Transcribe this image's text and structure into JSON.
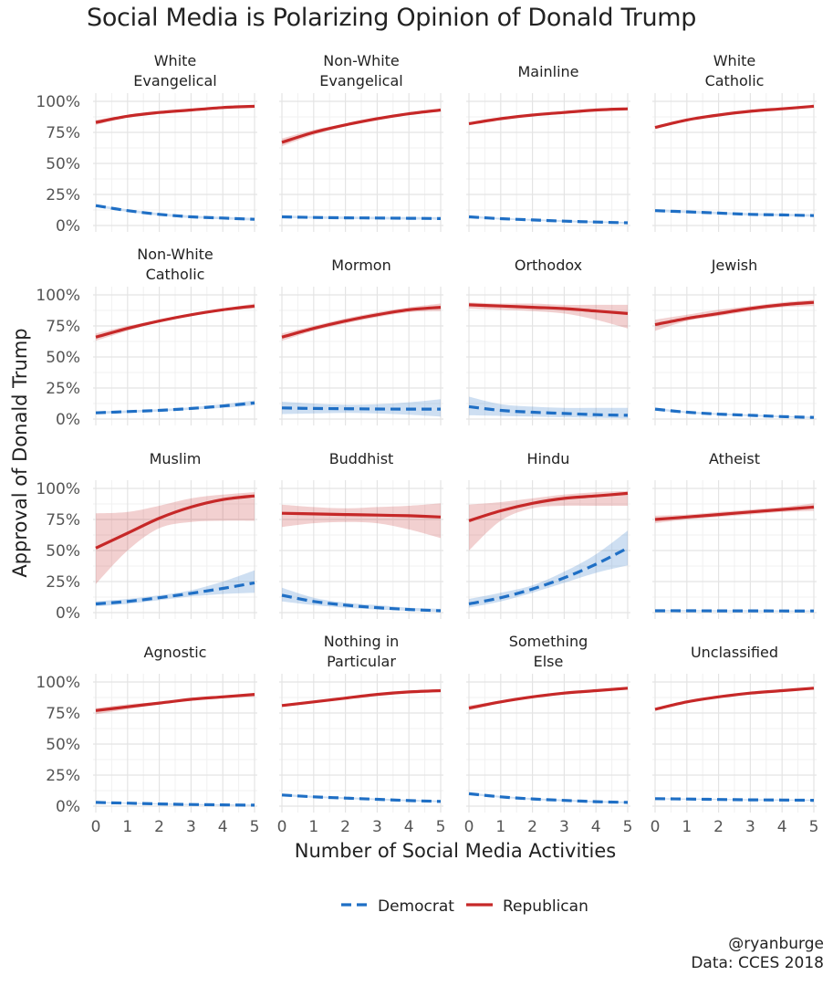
{
  "title": "Social Media is Polarizing Opinion of Donald Trump",
  "caption": {
    "handle": "@ryanburge",
    "source": "Data: CCES 2018"
  },
  "chart_data": {
    "type": "line",
    "facet_layout": "4x4",
    "xlabel": "Number of Social Media Activities",
    "ylabel": "Approval of Donald Trump",
    "x": [
      0,
      1,
      2,
      3,
      4,
      5
    ],
    "xlim": [
      0,
      5
    ],
    "ylim": [
      0,
      100
    ],
    "y_ticks": [
      "0%",
      "25%",
      "50%",
      "75%",
      "100%"
    ],
    "x_ticks": [
      "0",
      "1",
      "2",
      "3",
      "4",
      "5"
    ],
    "grid": true,
    "legend_position": "bottom",
    "legend": [
      {
        "name": "Democrat",
        "color": "#1f6fc5",
        "linestyle": "dashed"
      },
      {
        "name": "Republican",
        "color": "#c62828",
        "linestyle": "solid"
      }
    ],
    "panels": [
      {
        "title": [
          "White",
          "Evangelical"
        ],
        "republican": [
          83,
          88,
          91,
          93,
          95,
          96
        ],
        "rep_lower": [
          81,
          87,
          90,
          92,
          94,
          95
        ],
        "rep_upper": [
          85,
          89,
          92,
          94,
          96,
          97
        ],
        "democrat": [
          16,
          12,
          9,
          7,
          6,
          5
        ],
        "dem_lower": [
          15,
          11,
          8,
          6,
          5,
          4
        ],
        "dem_upper": [
          17,
          13,
          10,
          8,
          7,
          6
        ]
      },
      {
        "title": [
          "Non-White",
          "Evangelical"
        ],
        "republican": [
          67,
          75,
          81,
          86,
          90,
          93
        ],
        "rep_lower": [
          64,
          73,
          80,
          85,
          89,
          92
        ],
        "rep_upper": [
          70,
          77,
          82,
          87,
          91,
          94
        ],
        "democrat": [
          7,
          6.5,
          6.2,
          6,
          5.8,
          5.6
        ],
        "dem_lower": [
          6,
          5.5,
          5.2,
          5,
          4.8,
          4.6
        ],
        "dem_upper": [
          8,
          7.5,
          7.2,
          7,
          6.8,
          6.6
        ]
      },
      {
        "title": [
          "Mainline"
        ],
        "republican": [
          82,
          86,
          89,
          91,
          93,
          94
        ],
        "rep_lower": [
          81,
          85,
          88,
          90,
          92,
          93
        ],
        "rep_upper": [
          83,
          87,
          90,
          92,
          94,
          95
        ],
        "democrat": [
          7,
          5.5,
          4.5,
          3.5,
          2.8,
          2.2
        ],
        "dem_lower": [
          6,
          4.8,
          3.8,
          2.8,
          2.1,
          1.5
        ],
        "dem_upper": [
          8,
          6.2,
          5.2,
          4.2,
          3.5,
          2.9
        ]
      },
      {
        "title": [
          "White",
          "Catholic"
        ],
        "republican": [
          79,
          85,
          89,
          92,
          94,
          96
        ],
        "rep_lower": [
          78,
          84,
          88,
          91,
          93,
          95
        ],
        "rep_upper": [
          80,
          86,
          90,
          93,
          95,
          97
        ],
        "democrat": [
          12,
          11,
          10,
          9,
          8.5,
          8
        ],
        "dem_lower": [
          11,
          10,
          9,
          8,
          7.5,
          7
        ],
        "dem_upper": [
          13,
          12,
          11,
          10,
          9.5,
          9
        ]
      },
      {
        "title": [
          "Non-White",
          "Catholic"
        ],
        "republican": [
          66,
          73,
          79,
          84,
          88,
          91
        ],
        "rep_lower": [
          63,
          71,
          78,
          83,
          87,
          89
        ],
        "rep_upper": [
          69,
          75,
          80,
          85,
          89,
          93
        ],
        "democrat": [
          5,
          6,
          7,
          8.5,
          10.5,
          13
        ],
        "dem_lower": [
          4,
          5,
          6,
          7.5,
          9,
          11
        ],
        "dem_upper": [
          6,
          7,
          8,
          9.5,
          12,
          15
        ]
      },
      {
        "title": [
          "Mormon"
        ],
        "republican": [
          66,
          73,
          79,
          84,
          88,
          90
        ],
        "rep_lower": [
          63,
          71,
          77,
          82,
          86,
          87
        ],
        "rep_upper": [
          69,
          75,
          81,
          86,
          90,
          93
        ],
        "democrat": [
          9,
          8.5,
          8.3,
          8.1,
          8,
          8
        ],
        "dem_lower": [
          4,
          4.5,
          5,
          4.5,
          3.5,
          2
        ],
        "dem_upper": [
          14,
          12.5,
          11.5,
          12,
          13.5,
          16
        ]
      },
      {
        "title": [
          "Orthodox"
        ],
        "republican": [
          92,
          91,
          90,
          89,
          87,
          85
        ],
        "rep_lower": [
          89,
          88,
          87,
          85,
          80,
          73
        ],
        "rep_upper": [
          94,
          93,
          93,
          92,
          92,
          92
        ],
        "democrat": [
          10,
          7,
          5.5,
          4.5,
          3.5,
          3
        ],
        "dem_lower": [
          3,
          2.5,
          2,
          1.5,
          1,
          0.5
        ],
        "dem_upper": [
          18,
          12,
          10,
          9,
          9,
          9
        ]
      },
      {
        "title": [
          "Jewish"
        ],
        "republican": [
          76,
          81,
          85,
          89,
          92,
          94
        ],
        "rep_lower": [
          71,
          79,
          83,
          87,
          90,
          91
        ],
        "rep_upper": [
          80,
          84,
          88,
          91,
          94,
          96
        ],
        "democrat": [
          8,
          5.5,
          4,
          3,
          2,
          1.3
        ],
        "dem_lower": [
          7,
          4.8,
          3.3,
          2.3,
          1.4,
          0.8
        ],
        "dem_upper": [
          9,
          6.2,
          4.7,
          3.7,
          2.6,
          1.8
        ]
      },
      {
        "title": [
          "Muslim"
        ],
        "republican": [
          52,
          64,
          76,
          85,
          91,
          94
        ],
        "rep_lower": [
          23,
          50,
          68,
          73,
          74,
          74
        ],
        "rep_upper": [
          80,
          81,
          86,
          92,
          95,
          97
        ],
        "democrat": [
          7,
          9,
          12,
          15.5,
          19.5,
          24
        ],
        "dem_lower": [
          5,
          7,
          10,
          13,
          15,
          16
        ],
        "dem_upper": [
          9,
          11,
          14,
          18,
          25,
          34
        ]
      },
      {
        "title": [
          "Buddhist"
        ],
        "republican": [
          80,
          79.5,
          79,
          78.5,
          78,
          77
        ],
        "rep_lower": [
          69,
          72,
          73,
          72,
          67,
          60
        ],
        "rep_upper": [
          87,
          85,
          84,
          85,
          86,
          88
        ],
        "democrat": [
          14,
          9,
          6,
          4,
          2.5,
          1.5
        ],
        "dem_lower": [
          9,
          6,
          4,
          2.5,
          1.5,
          0.5
        ],
        "dem_upper": [
          20,
          12,
          8,
          6,
          4,
          3
        ]
      },
      {
        "title": [
          "Hindu"
        ],
        "republican": [
          74,
          82,
          88,
          92,
          94,
          96
        ],
        "rep_lower": [
          50,
          74,
          84,
          86,
          86,
          86
        ],
        "rep_upper": [
          87,
          89,
          92,
          95,
          97,
          98
        ],
        "democrat": [
          7,
          12,
          19,
          28,
          39,
          52
        ],
        "dem_lower": [
          4,
          9,
          16,
          24,
          32,
          38
        ],
        "dem_upper": [
          11,
          16,
          22,
          33,
          47,
          66
        ]
      },
      {
        "title": [
          "Atheist"
        ],
        "republican": [
          75,
          77,
          79,
          81,
          83,
          85
        ],
        "rep_lower": [
          72,
          75,
          77,
          79,
          81,
          82
        ],
        "rep_upper": [
          78,
          79,
          81,
          83,
          85,
          88
        ],
        "democrat": [
          1.5,
          1.5,
          1.4,
          1.4,
          1.3,
          1.3
        ],
        "dem_lower": [
          1,
          1,
          0.9,
          0.9,
          0.8,
          0.8
        ],
        "dem_upper": [
          2,
          2,
          1.9,
          1.9,
          1.8,
          1.8
        ]
      },
      {
        "title": [
          "Agnostic"
        ],
        "republican": [
          77,
          80,
          83,
          86,
          88,
          90
        ],
        "rep_lower": [
          74,
          78,
          82,
          85,
          87,
          88
        ],
        "rep_upper": [
          79,
          82,
          84,
          87,
          89,
          91
        ],
        "democrat": [
          3,
          2.4,
          1.8,
          1.3,
          1,
          0.8
        ],
        "dem_lower": [
          2.5,
          1.9,
          1.3,
          0.8,
          0.5,
          0.3
        ],
        "dem_upper": [
          3.5,
          2.9,
          2.3,
          1.8,
          1.5,
          1.3
        ]
      },
      {
        "title": [
          "Nothing in",
          "Particular"
        ],
        "republican": [
          81,
          84,
          87,
          90,
          92,
          93
        ],
        "rep_lower": [
          80,
          83,
          86,
          89,
          91,
          92
        ],
        "rep_upper": [
          82,
          85,
          88,
          91,
          93,
          94
        ],
        "democrat": [
          9,
          7.5,
          6.5,
          5.5,
          4.5,
          3.8
        ],
        "dem_lower": [
          8,
          6.8,
          5.8,
          4.8,
          3.8,
          3.1
        ],
        "dem_upper": [
          10,
          8.2,
          7.2,
          6.2,
          5.2,
          4.5
        ]
      },
      {
        "title": [
          "Something",
          "Else"
        ],
        "republican": [
          79,
          84,
          88,
          91,
          93,
          95
        ],
        "rep_lower": [
          77,
          83,
          87,
          90,
          92,
          94
        ],
        "rep_upper": [
          81,
          85,
          89,
          92,
          94,
          96
        ],
        "democrat": [
          10,
          7.5,
          5.8,
          4.6,
          3.6,
          3
        ],
        "dem_lower": [
          9,
          6.8,
          5.1,
          3.9,
          2.9,
          2.3
        ],
        "dem_upper": [
          11,
          8.2,
          6.5,
          5.3,
          4.3,
          3.7
        ]
      },
      {
        "title": [
          "Unclassified"
        ],
        "republican": [
          78,
          84,
          88,
          91,
          93,
          95
        ],
        "rep_lower": [
          77,
          83,
          87,
          90,
          92,
          94
        ],
        "rep_upper": [
          79,
          85,
          89,
          92,
          94,
          96
        ],
        "democrat": [
          6,
          5.7,
          5.4,
          5.1,
          4.9,
          4.7
        ],
        "dem_lower": [
          5.5,
          5.2,
          4.9,
          4.6,
          4.4,
          4.2
        ],
        "dem_upper": [
          6.5,
          6.2,
          5.9,
          5.6,
          5.4,
          5.2
        ]
      }
    ]
  }
}
